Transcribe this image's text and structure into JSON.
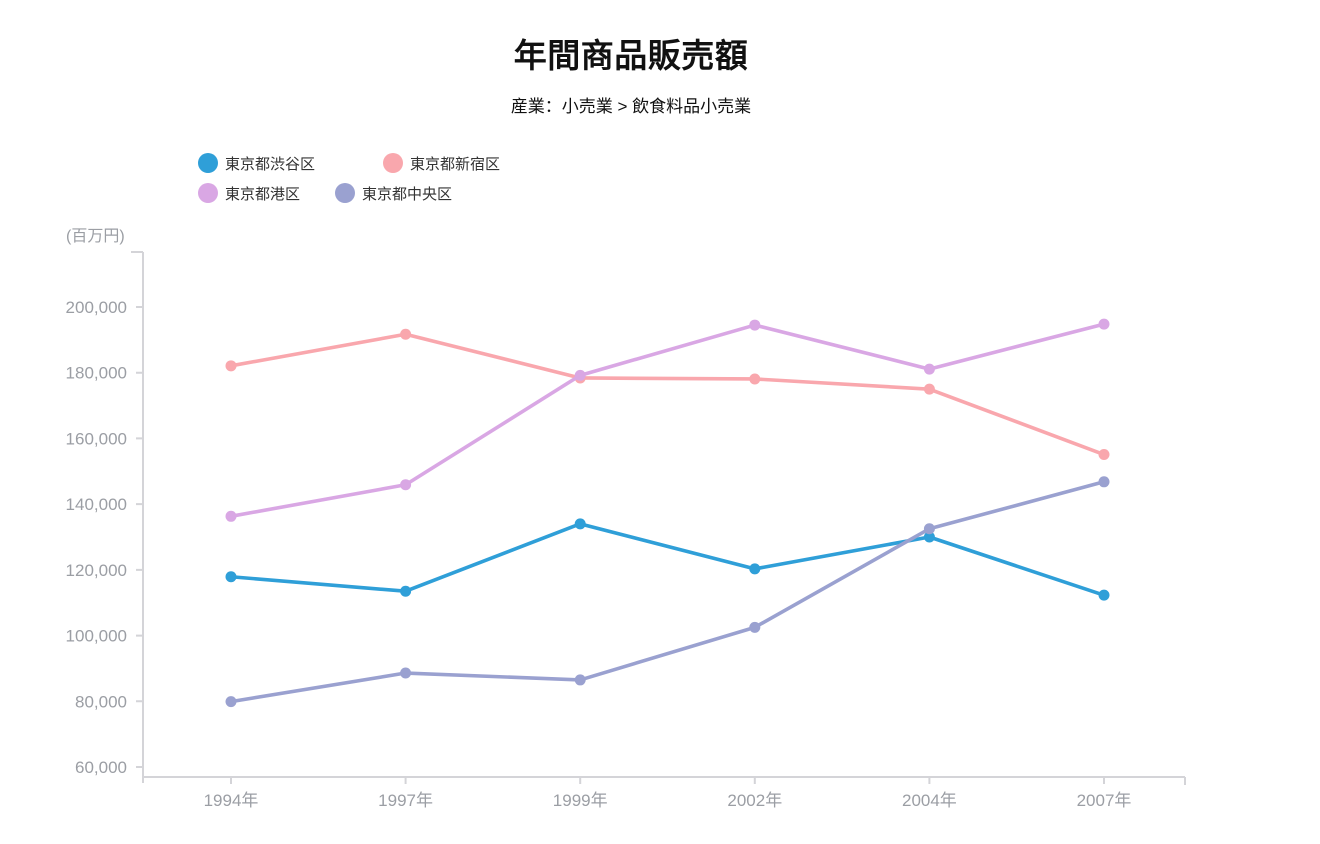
{
  "page": {
    "title": "年間商品販売額",
    "subtitle": "産業：小売業 > 飲食料品小売業"
  },
  "legend": {
    "items": [
      {
        "label": "東京都渋谷区",
        "color": "#2F9FD8"
      },
      {
        "label": "東京都新宿区",
        "color": "#F9A7AD"
      },
      {
        "label": "東京都港区",
        "color": "#D9A7E4"
      },
      {
        "label": "東京都中央区",
        "color": "#9AA1D0"
      }
    ]
  },
  "chart_data": {
    "type": "line",
    "title": "年間商品販売額",
    "subtitle": "産業：小売業 > 飲食料品小売業",
    "ylabel": "(百万円)",
    "unit": "百万円",
    "categories": [
      "1994年",
      "1997年",
      "1999年",
      "2002年",
      "2004年",
      "2007年"
    ],
    "series": [
      {
        "name": "東京都渋谷区",
        "color": "#2F9FD8",
        "values": [
          117900,
          113500,
          134000,
          120300,
          130000,
          112300
        ]
      },
      {
        "name": "東京都新宿区",
        "color": "#F9A7AD",
        "values": [
          182100,
          191700,
          178400,
          178100,
          175000,
          155100
        ]
      },
      {
        "name": "東京都港区",
        "color": "#D9A7E4",
        "values": [
          136300,
          145900,
          179200,
          194500,
          181100,
          194800
        ]
      },
      {
        "name": "東京都中央区",
        "color": "#9AA1D0",
        "values": [
          79900,
          88600,
          86500,
          102500,
          132500,
          146800
        ]
      }
    ],
    "yticks": [
      60000,
      80000,
      100000,
      120000,
      140000,
      160000,
      180000,
      200000
    ],
    "ylim": [
      57000,
      217000
    ],
    "grid": false,
    "legend_position": "top-left",
    "axis_color": "#d4d4d8",
    "tick_label_color": "#9b9ea4"
  }
}
